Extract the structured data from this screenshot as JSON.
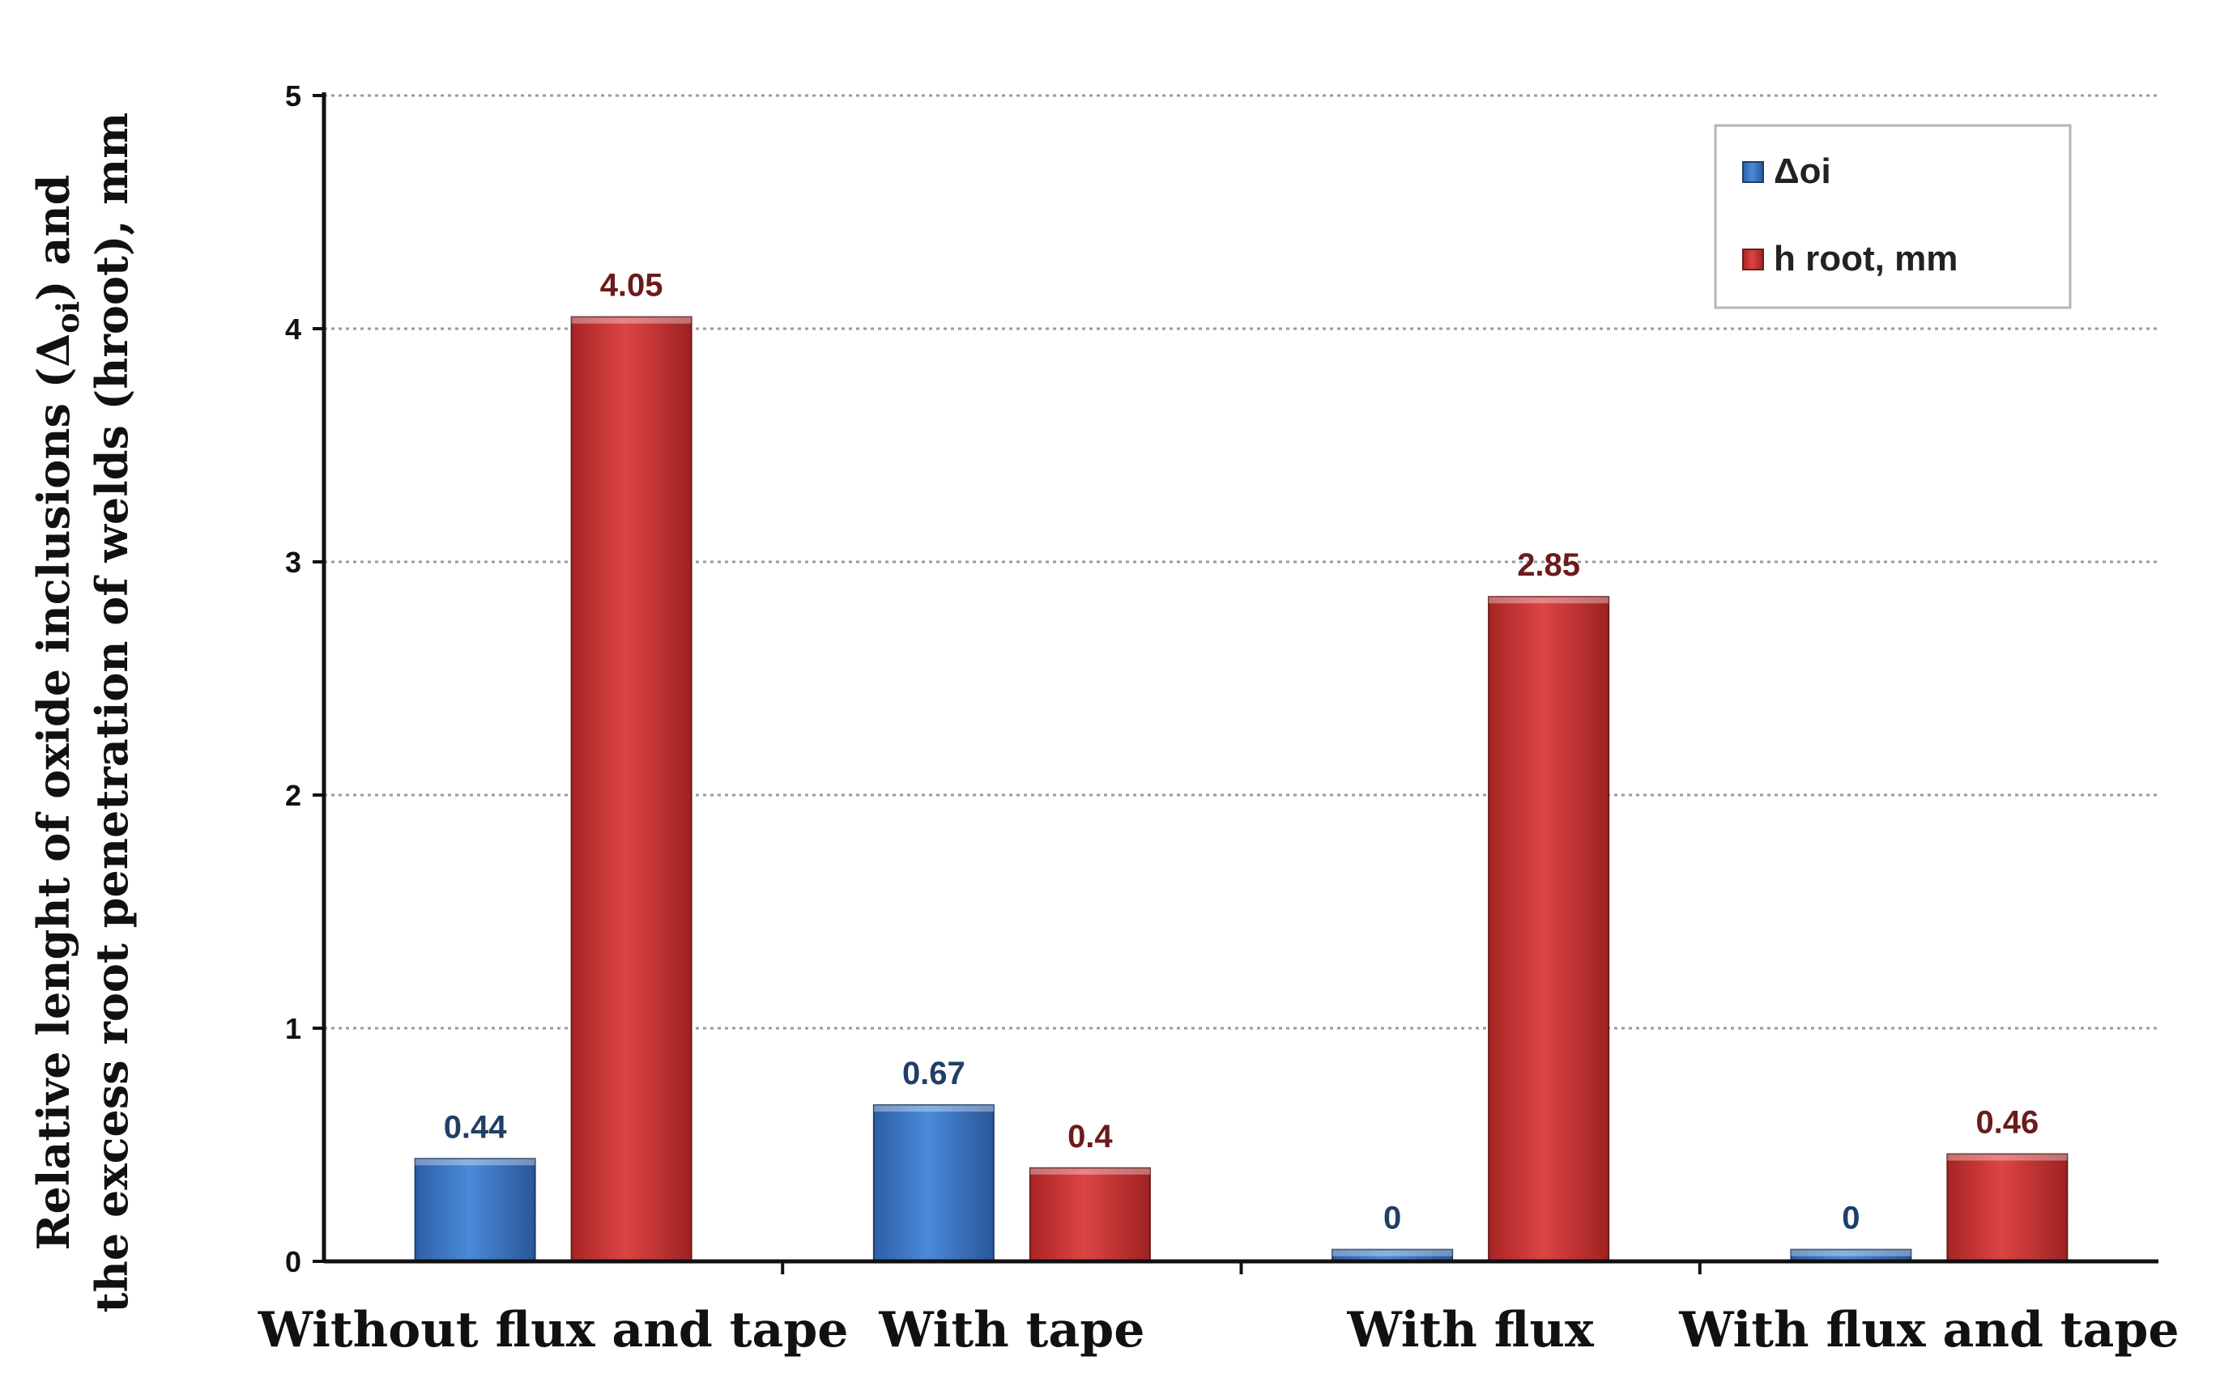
{
  "chart_data": {
    "type": "bar",
    "title": "",
    "ylabel_line1": "Relative lenght of oxide inclusions (Δ",
    "ylabel_sub": "oi",
    "ylabel_line1_end": ")  and",
    "ylabel_line2": "the excess root penetration of welds (hroot), mm",
    "xlabel": "",
    "categories": [
      "Without flux and tape",
      "With tape",
      "With flux",
      "With flux and tape"
    ],
    "series": [
      {
        "name": "Δoi",
        "values": [
          0.44,
          0.67,
          0,
          0
        ],
        "labels": [
          "0.44",
          "0.67",
          "0",
          "0"
        ],
        "color": "#3b78c9",
        "label_color": "#1f3f66"
      },
      {
        "name": "h root, mm",
        "values": [
          4.05,
          0.4,
          2.85,
          0.46
        ],
        "labels": [
          "4.05",
          "0.4",
          "2.85",
          "0.46"
        ],
        "color": "#cc3535",
        "label_color": "#6b1b1b"
      }
    ],
    "ylim": [
      0,
      5
    ],
    "yticks": [
      "0",
      "1",
      "2",
      "3",
      "4",
      "5"
    ],
    "grid": true,
    "legend_position": "top-right"
  }
}
